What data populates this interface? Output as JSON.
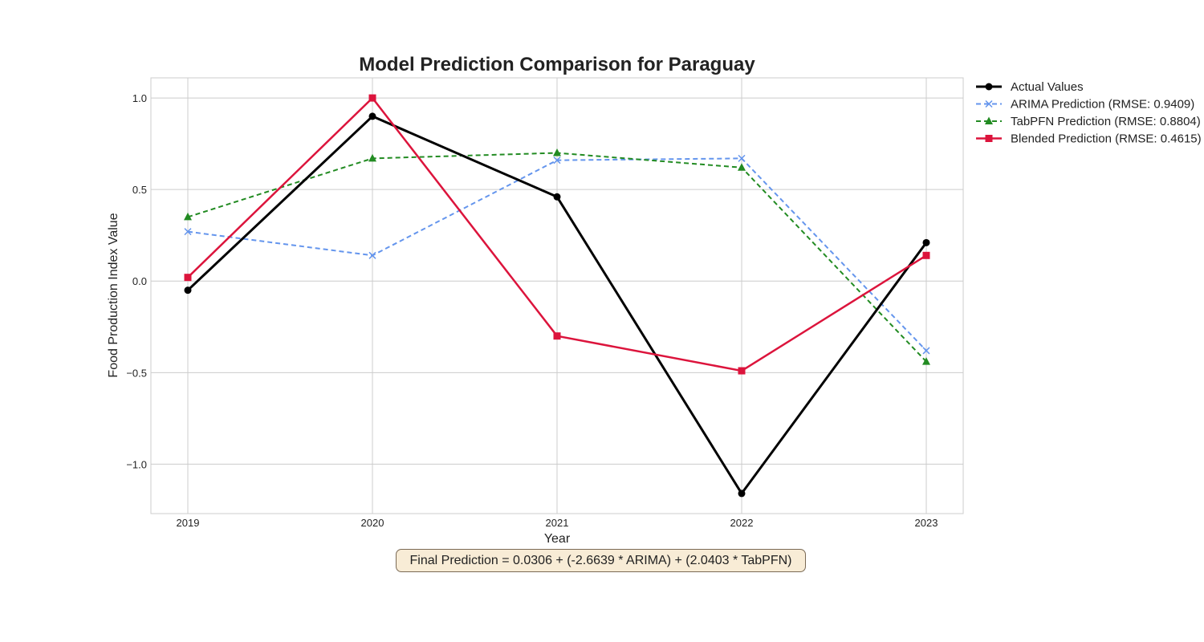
{
  "chart_data": {
    "type": "line",
    "title": "Model Prediction Comparison for Paraguay",
    "xlabel": "Year",
    "ylabel": "Food Production Index Value",
    "categories": [
      "2019",
      "2020",
      "2021",
      "2022",
      "2023"
    ],
    "ylim": [
      -1.27,
      1.11
    ],
    "yticks": [
      1.0,
      0.5,
      0.0,
      -0.5,
      -1.0
    ],
    "ytick_labels": [
      "1.0",
      "0.5",
      "0.0",
      "−0.5",
      "−1.0"
    ],
    "grid": true,
    "legend_position": "outside-top-right",
    "series": [
      {
        "name": "Actual Values",
        "values": [
          -0.05,
          0.9,
          0.46,
          -1.16,
          0.21
        ],
        "color": "#000000",
        "dash": "solid",
        "marker": "circle"
      },
      {
        "name": "ARIMA Prediction (RMSE: 0.9409)",
        "values": [
          0.27,
          0.14,
          0.66,
          0.67,
          -0.38
        ],
        "color": "#6495ED",
        "dash": "dashed",
        "marker": "x"
      },
      {
        "name": "TabPFN Prediction (RMSE: 0.8804)",
        "values": [
          0.35,
          0.67,
          0.7,
          0.62,
          -0.44
        ],
        "color": "#228B22",
        "dash": "dashed",
        "marker": "triangle"
      },
      {
        "name": "Blended Prediction (RMSE: 0.4615)",
        "values": [
          0.02,
          1.0,
          -0.3,
          -0.49,
          0.14
        ],
        "color": "#DC143C",
        "dash": "solid",
        "marker": "square"
      }
    ],
    "annotation": "Final Prediction = 0.0306 + (-2.6639 * ARIMA) + (2.0403 * TabPFN)"
  }
}
